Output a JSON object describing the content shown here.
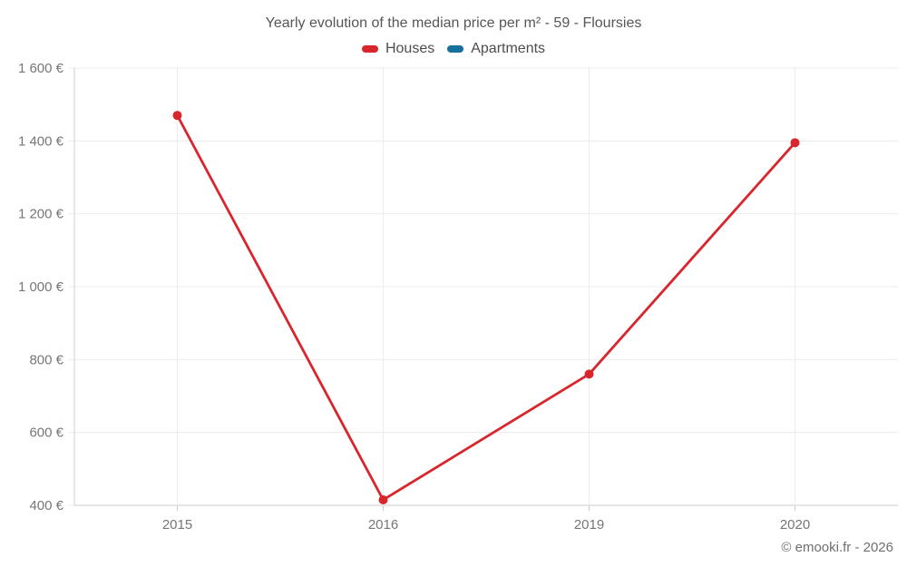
{
  "title": "Yearly evolution of the median price per m² - 59 - Floursies",
  "legend": {
    "items": [
      {
        "label": "Houses",
        "color": "#d8262c"
      },
      {
        "label": "Apartments",
        "color": "#16719e"
      }
    ]
  },
  "footer": {
    "credit": "© emooki.fr - 2026"
  },
  "chart_data": {
    "type": "line",
    "title": "Yearly evolution of the median price per m² - 59 - Floursies",
    "categories": [
      "2015",
      "2016",
      "2019",
      "2020"
    ],
    "series": [
      {
        "name": "Houses",
        "color": "#d8262c",
        "values": [
          1470,
          415,
          760,
          1395
        ]
      },
      {
        "name": "Apartments",
        "color": "#16719e",
        "values": []
      }
    ],
    "xlabel": "",
    "ylabel": "",
    "ylim": [
      400,
      1600
    ],
    "ytick_step": 200,
    "ytick_suffix": " €",
    "grid": true,
    "legend_position": "top",
    "colors": {
      "grid": "#ececec",
      "axis": "#cccccc",
      "tick_label": "#767676",
      "title": "#565656"
    }
  }
}
